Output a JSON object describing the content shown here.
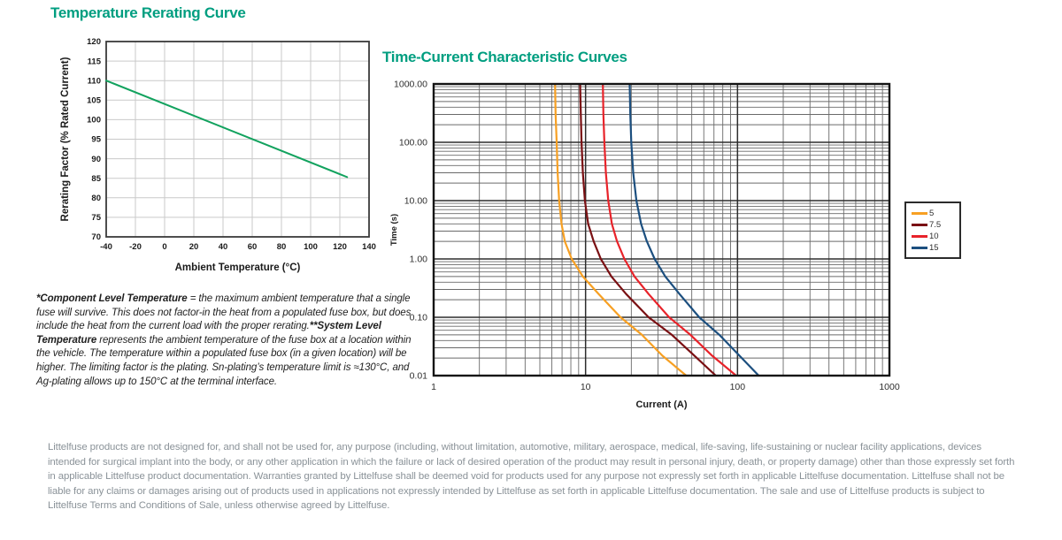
{
  "page": {
    "left_title": "Temperature Rerating Curve",
    "right_title": "Time-Current Characteristic Curves",
    "notes": [
      {
        "lead": "*Component Level Temperature",
        "rest": " = the maximum ambient temperature that a single fuse will survive. This does not factor-in the heat from a populated fuse box, but does include the heat from the current load with the proper rerating."
      },
      {
        "lead": "**System Level Temperature",
        "rest": " represents the ambient temperature of the fuse box at a location within the vehicle. The temperature within a populated fuse box (in a given location) will be higher. The limiting factor is the plating. Sn-plating’s temperature limit is ≈130°C, and Ag-plating allows up to 150°C at the terminal interface."
      }
    ],
    "disclaimer": "Littelfuse products are not designed for, and shall not be used for, any purpose (including, without limitation, automotive, military, aerospace, medical, life-saving, life-sustaining or nuclear facility applications, devices intended for surgical implant into the body, or any other application in which the failure or lack of desired operation of the product may result in personal injury, death, or property damage) other than those expressly set forth in applicable Littelfuse product documentation.  Warranties granted by Littelfuse shall be deemed void for products used for any purpose not expressly set forth in applicable Littelfuse documentation.  Littelfuse shall not be liable for any claims or damages arising out of products used in applications not expressly intended by Littelfuse as set forth in applicable Littelfuse documentation.  The sale and use of Littelfuse products is subject to Littelfuse Terms and Conditions of Sale, unless otherwise agreed by Littelfuse.",
    "colors": {
      "title_teal": "#009E80",
      "rerating_line": "#12A25E",
      "grid_light": "#c9c9c9",
      "border_dark": "#3a3a3a",
      "grid_minor": "#6a6a6a",
      "grid_major": "#2d2d2d",
      "border_black": "#141414",
      "disclaimer_gray": "#8A9298"
    }
  },
  "chart_data": [
    {
      "type": "line",
      "title": "Temperature Rerating Curve",
      "xlabel": "Ambient Temperature (°C)",
      "ylabel": "Rerating Factor (% Rated Current)",
      "xscale": "linear",
      "yscale": "linear",
      "xlim": [
        -40,
        140
      ],
      "ylim": [
        70,
        120
      ],
      "xticks": [
        -40,
        -20,
        0,
        20,
        40,
        60,
        80,
        100,
        120,
        140
      ],
      "yticks": [
        70,
        75,
        80,
        85,
        90,
        95,
        100,
        105,
        110,
        115,
        120
      ],
      "grid": true,
      "legend_position": "none",
      "series": [
        {
          "name": "rerating-factor",
          "color": "#12A25E",
          "points": [
            [
              -40,
              110
            ],
            [
              125,
              85.3
            ]
          ]
        }
      ]
    },
    {
      "type": "line",
      "title": "Time-Current Characteristic Curves",
      "xlabel": "Current (A)",
      "ylabel": "Time (s)",
      "xscale": "log",
      "yscale": "log",
      "xlim": [
        1,
        1000
      ],
      "ylim": [
        0.01,
        1000
      ],
      "xticks": [
        1,
        10,
        100,
        1000
      ],
      "xtick_labels": [
        "1",
        "10",
        "100",
        "1000"
      ],
      "yticks": [
        1000,
        100,
        10,
        1,
        0.1,
        0.01
      ],
      "ytick_labels": [
        "1000.00",
        "100.00",
        "10.00",
        "1.00",
        "0.10",
        "0.01"
      ],
      "grid": true,
      "legend_position": "right",
      "series": [
        {
          "name": "5",
          "color": "#F7A023",
          "points": [
            [
              6.3,
              1000
            ],
            [
              6.35,
              300
            ],
            [
              6.45,
              100
            ],
            [
              6.55,
              30
            ],
            [
              6.7,
              10
            ],
            [
              6.95,
              4
            ],
            [
              7.3,
              2
            ],
            [
              8.1,
              1
            ],
            [
              9.6,
              0.5
            ],
            [
              12.2,
              0.25
            ],
            [
              17,
              0.1
            ],
            [
              23.5,
              0.05
            ],
            [
              32,
              0.022
            ],
            [
              46,
              0.01
            ]
          ]
        },
        {
          "name": "7.5",
          "color": "#7A1013",
          "points": [
            [
              9.2,
              1000
            ],
            [
              9.3,
              300
            ],
            [
              9.4,
              100
            ],
            [
              9.6,
              30
            ],
            [
              9.9,
              10
            ],
            [
              10.4,
              4
            ],
            [
              11.3,
              2
            ],
            [
              12.6,
              1
            ],
            [
              14.8,
              0.5
            ],
            [
              18.5,
              0.25
            ],
            [
              26,
              0.1
            ],
            [
              37,
              0.05
            ],
            [
              52,
              0.022
            ],
            [
              72,
              0.01
            ]
          ]
        },
        {
          "name": "10",
          "color": "#E8232A",
          "points": [
            [
              13,
              1000
            ],
            [
              13.1,
              300
            ],
            [
              13.3,
              100
            ],
            [
              13.6,
              30
            ],
            [
              14.1,
              10
            ],
            [
              14.9,
              4
            ],
            [
              16.1,
              2
            ],
            [
              18,
              1
            ],
            [
              21,
              0.5
            ],
            [
              26,
              0.25
            ],
            [
              35.5,
              0.1
            ],
            [
              49,
              0.05
            ],
            [
              68,
              0.022
            ],
            [
              98,
              0.01
            ]
          ]
        },
        {
          "name": "15",
          "color": "#1C4F7F",
          "points": [
            [
              19.5,
              1000
            ],
            [
              19.7,
              300
            ],
            [
              20,
              100
            ],
            [
              20.6,
              30
            ],
            [
              21.6,
              10
            ],
            [
              23.2,
              4
            ],
            [
              25.3,
              2
            ],
            [
              28.5,
              1
            ],
            [
              33.5,
              0.5
            ],
            [
              41.5,
              0.25
            ],
            [
              56,
              0.1
            ],
            [
              76,
              0.05
            ],
            [
              103,
              0.022
            ],
            [
              138,
              0.01
            ]
          ]
        }
      ]
    }
  ]
}
